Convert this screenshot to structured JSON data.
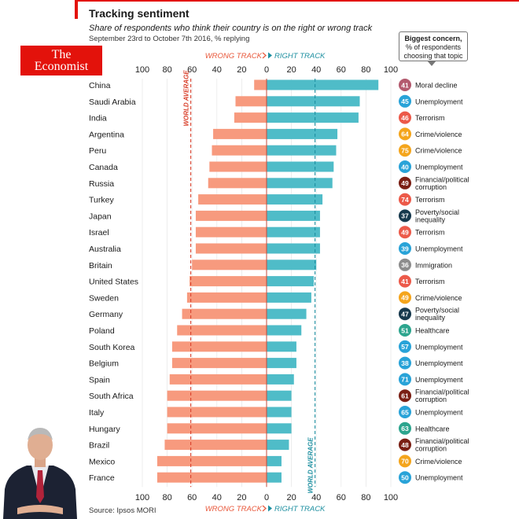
{
  "header": {
    "title": "Tracking sentiment",
    "subtitle": "Share of respondents who think their country is on the right or wrong track",
    "dateline": "September 23rd to October 7th 2016, % replying"
  },
  "logo": {
    "line1": "The",
    "line2": "Economist"
  },
  "legend": {
    "bold": "Biggest concern,",
    "line2": "% of respondents",
    "line3": "choosing that topic"
  },
  "source": "Source: Ipsos MORI",
  "colors": {
    "wrong_track": "#f79a7e",
    "right_track": "#4fbcc8",
    "wrong_label": "#e8573a",
    "right_label": "#1d8fa0",
    "brand_red": "#e3120b",
    "topics": {
      "Moral decline": "#b35a6e",
      "Unemployment": "#29a3d8",
      "Terrorism": "#ec5a4a",
      "Crime/violence": "#f4a51c",
      "Financial/political corruption": "#7a1f14",
      "Poverty/social inequality": "#17394d",
      "Immigration": "#8d8d8d",
      "Healthcare": "#2da58e"
    }
  },
  "chart_data": {
    "type": "bar",
    "orientation": "diverging-horizontal",
    "title": "Tracking sentiment",
    "axis_labels": {
      "wrong": "WRONG TRACK",
      "right": "RIGHT TRACK"
    },
    "xlim": [
      -100,
      100
    ],
    "xticks": [
      100,
      80,
      60,
      40,
      20,
      0,
      20,
      40,
      60,
      80,
      100
    ],
    "world_average_label": "WORLD AVERAGE",
    "world_average": {
      "wrong": 61,
      "right": 39
    },
    "categories": [
      "China",
      "Saudi Arabia",
      "India",
      "Argentina",
      "Peru",
      "Canada",
      "Russia",
      "Turkey",
      "Japan",
      "Israel",
      "Australia",
      "Britain",
      "United States",
      "Sweden",
      "Germany",
      "Poland",
      "South Korea",
      "Belgium",
      "Spain",
      "South Africa",
      "Italy",
      "Hungary",
      "Brazil",
      "Mexico",
      "France"
    ],
    "series": [
      {
        "name": "WRONG TRACK",
        "values": [
          10,
          25,
          26,
          43,
          44,
          46,
          47,
          55,
          57,
          57,
          57,
          60,
          62,
          64,
          68,
          72,
          76,
          76,
          78,
          80,
          80,
          80,
          82,
          88,
          88
        ]
      },
      {
        "name": "RIGHT TRACK",
        "values": [
          90,
          75,
          74,
          57,
          56,
          54,
          53,
          45,
          43,
          43,
          43,
          40,
          38,
          36,
          32,
          28,
          24,
          24,
          22,
          20,
          20,
          20,
          18,
          12,
          12
        ]
      }
    ],
    "concern_values": [
      41,
      45,
      46,
      64,
      75,
      40,
      49,
      74,
      37,
      49,
      39,
      36,
      41,
      49,
      47,
      51,
      57,
      38,
      71,
      61,
      65,
      63,
      48,
      70,
      50
    ],
    "concern_topics": [
      "Moral decline",
      "Unemployment",
      "Terrorism",
      "Crime/violence",
      "Crime/violence",
      "Unemployment",
      "Financial/political corruption",
      "Terrorism",
      "Poverty/social inequality",
      "Terrorism",
      "Unemployment",
      "Immigration",
      "Terrorism",
      "Crime/violence",
      "Poverty/social inequality",
      "Healthcare",
      "Unemployment",
      "Unemployment",
      "Unemployment",
      "Financial/political corruption",
      "Unemployment",
      "Healthcare",
      "Financial/political corruption",
      "Crime/violence",
      "Unemployment"
    ],
    "concern_labels": [
      [
        "Moral decline"
      ],
      [
        "Unemployment"
      ],
      [
        "Terrorism"
      ],
      [
        "Crime/violence"
      ],
      [
        "Crime/violence"
      ],
      [
        "Unemployment"
      ],
      [
        "Financial/political",
        "corruption"
      ],
      [
        "Terrorism"
      ],
      [
        "Poverty/social",
        "inequality"
      ],
      [
        "Terrorism"
      ],
      [
        "Unemployment"
      ],
      [
        "Immigration"
      ],
      [
        "Terrorism"
      ],
      [
        "Crime/violence"
      ],
      [
        "Poverty/social",
        "inequality"
      ],
      [
        "Healthcare"
      ],
      [
        "Unemployment"
      ],
      [
        "Unemployment"
      ],
      [
        "Unemployment"
      ],
      [
        "Financial/political",
        "corruption"
      ],
      [
        "Unemployment"
      ],
      [
        "Healthcare"
      ],
      [
        "Financial/political",
        "corruption"
      ],
      [
        "Crime/violence"
      ],
      [
        "Unemployment"
      ]
    ]
  }
}
